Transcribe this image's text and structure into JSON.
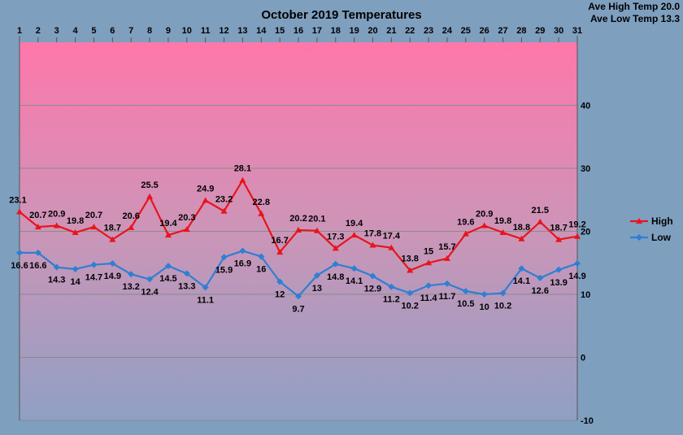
{
  "chart_data": {
    "type": "line",
    "title": "October 2019 Temperatures",
    "annotations": [
      "Ave High Temp 20.0",
      "Ave Low Temp 13.3"
    ],
    "x": [
      1,
      2,
      3,
      4,
      5,
      6,
      7,
      8,
      9,
      10,
      11,
      12,
      13,
      14,
      15,
      16,
      17,
      18,
      19,
      20,
      21,
      22,
      23,
      24,
      25,
      26,
      27,
      28,
      29,
      30,
      31
    ],
    "x_axis_position": "top",
    "y_axis_position": "right",
    "ylim": [
      -10,
      50
    ],
    "yticks": [
      -10,
      0,
      10,
      20,
      30,
      40
    ],
    "grid": true,
    "legend_position": "right",
    "series": [
      {
        "name": "High",
        "color": "#e8141c",
        "values": [
          23.1,
          20.7,
          20.9,
          19.8,
          20.7,
          18.7,
          20.6,
          25.5,
          19.4,
          20.3,
          24.9,
          23.2,
          28.1,
          22.8,
          16.7,
          20.2,
          20.1,
          17.3,
          19.4,
          17.8,
          17.4,
          13.8,
          15,
          15.7,
          19.6,
          20.9,
          19.8,
          18.8,
          21.5,
          18.7,
          19.2
        ]
      },
      {
        "name": "Low",
        "color": "#2f7fd2",
        "values": [
          16.6,
          16.6,
          14.3,
          14,
          14.7,
          14.9,
          13.2,
          12.4,
          14.5,
          13.3,
          11.1,
          15.9,
          16.9,
          16,
          12,
          9.7,
          13,
          14.8,
          14.1,
          12.9,
          11.2,
          10.2,
          11.4,
          11.7,
          10.5,
          10,
          10.2,
          14.1,
          12.6,
          13.9,
          14.9
        ]
      }
    ]
  }
}
